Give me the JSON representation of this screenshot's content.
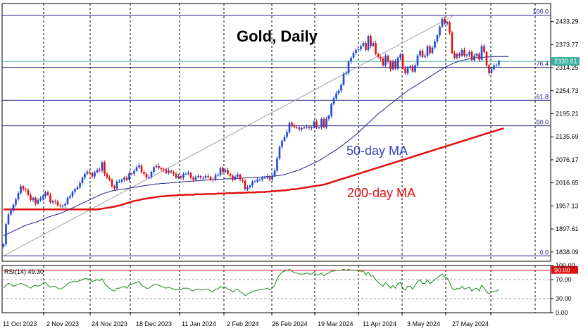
{
  "chart_data": [
    {
      "type": "candlestick",
      "title": "Gold, Daily",
      "x_labels": [
        "11 Oct 2023",
        "2 Nov 2023",
        "24 Nov 2023",
        "18 Dec 2023",
        "11 Jan 2024",
        "2 Feb 2024",
        "26 Feb 2024",
        "19 Mar 2024",
        "11 Apr 2024",
        "3 May 2024",
        "27 May 2024"
      ],
      "y_ticks": [
        "2433.29",
        "2373.77",
        "2314.25",
        "2254.73",
        "2195.21",
        "2135.69",
        "2076.17",
        "2016.65",
        "1957.13",
        "1897.61",
        "1838.09"
      ],
      "ylim": [
        1814,
        2480
      ],
      "current_price": {
        "label": "2330.61",
        "value": 2330.61
      },
      "fibonacci": [
        {
          "label": "100.0",
          "value": 2450
        },
        {
          "label": "76.4",
          "value": 2315
        },
        {
          "label": "61.8",
          "value": 2230
        },
        {
          "label": "50.0",
          "value": 2164
        },
        {
          "label": "0.0",
          "value": 1828
        }
      ],
      "annotations": {
        "ma50": "50-day MA",
        "ma200": "200-day MA"
      },
      "colors": {
        "up": "#1a48d8",
        "down": "#e01010",
        "ma50": "#20208a",
        "ma200": "#e01010",
        "fib": "#20208a",
        "price": "#3ab0a0",
        "label_ma50": "#3a42c0",
        "label_ma200": "#e01010"
      },
      "close": [
        1858,
        1910,
        1935,
        1945,
        1960,
        1974,
        1990,
        2008,
        2000,
        1998,
        1985,
        1972,
        1978,
        1963,
        1972,
        1976,
        1982,
        1992,
        1985,
        1966,
        1970,
        1968,
        1958,
        1956,
        1958,
        1962,
        1978,
        1982,
        1994,
        2000,
        2005,
        2016,
        2030,
        2040,
        2045,
        2042,
        2033,
        2044,
        2050,
        2048,
        2070,
        2040,
        2030,
        2025,
        2008,
        2002,
        2020,
        2020,
        2025,
        2030,
        2024,
        2041,
        2040,
        2048,
        2057,
        2062,
        2045,
        2040,
        2030,
        2032,
        2045,
        2057,
        2060,
        2055,
        2052,
        2050,
        2042,
        2048,
        2045,
        2040,
        2030,
        2034,
        2030,
        2040,
        2040,
        2042,
        2030,
        2025,
        2032,
        2034,
        2030,
        2030,
        2034,
        2032,
        2026,
        2024,
        2037,
        2037,
        2055,
        2045,
        2050,
        2040,
        2035,
        2025,
        2033,
        2038,
        2025,
        2022,
        2000,
        2005,
        2010,
        2020,
        2020,
        2025,
        2025,
        2030,
        2030,
        2034,
        2025,
        2035,
        2048,
        2080,
        2110,
        2125,
        2135,
        2148,
        2172,
        2165,
        2160,
        2160,
        2155,
        2158,
        2160,
        2162,
        2158,
        2160,
        2175,
        2160,
        2160,
        2182,
        2160,
        2182,
        2190,
        2220,
        2235,
        2248,
        2255,
        2270,
        2298,
        2300,
        2330,
        2340,
        2352,
        2360,
        2362,
        2370,
        2378,
        2360,
        2396,
        2370,
        2378,
        2350,
        2342,
        2338,
        2320,
        2345,
        2330,
        2310,
        2330,
        2312,
        2340,
        2348,
        2312,
        2300,
        2315,
        2318,
        2304,
        2320,
        2346,
        2358,
        2342,
        2345,
        2370,
        2352,
        2366,
        2382,
        2398,
        2420,
        2440,
        2428,
        2432,
        2405,
        2352,
        2340,
        2350,
        2345,
        2360,
        2345,
        2348,
        2355,
        2334,
        2345,
        2350,
        2335,
        2370,
        2355,
        2320,
        2300,
        2310,
        2320,
        2322,
        2331
      ],
      "ma50": [
        1880,
        1883,
        1886,
        1889,
        1892,
        1895,
        1898,
        1901,
        1904,
        1907,
        1909,
        1911,
        1913,
        1915,
        1917,
        1920,
        1922,
        1925,
        1928,
        1930,
        1932,
        1934,
        1936,
        1938,
        1940,
        1943,
        1946,
        1949,
        1952,
        1955,
        1958,
        1961,
        1964,
        1967,
        1970,
        1973,
        1976,
        1979,
        1982,
        1985,
        1988,
        1990,
        1992,
        1994,
        1996,
        1997,
        1998,
        1999,
        2000,
        2001,
        2002,
        2003,
        2004,
        2005,
        2006,
        2007,
        2008,
        2009,
        2010,
        2011,
        2012,
        2013,
        2014,
        2014,
        2015,
        2015,
        2016,
        2016,
        2017,
        2017,
        2018,
        2018,
        2019,
        2019,
        2020,
        2020,
        2021,
        2021,
        2022,
        2022,
        2023,
        2023,
        2024,
        2024,
        2025,
        2025,
        2025,
        2026,
        2026,
        2026,
        2027,
        2027,
        2027,
        2028,
        2028,
        2028,
        2029,
        2029,
        2029,
        2030,
        2030,
        2030,
        2031,
        2031,
        2031,
        2032,
        2032,
        2033,
        2033,
        2034,
        2034,
        2035,
        2036,
        2037,
        2038,
        2040,
        2042,
        2044,
        2046,
        2048,
        2050,
        2053,
        2056,
        2059,
        2062,
        2065,
        2068,
        2071,
        2074,
        2078,
        2082,
        2086,
        2090,
        2094,
        2098,
        2102,
        2106,
        2111,
        2116,
        2121,
        2126,
        2131,
        2136,
        2141,
        2147,
        2153,
        2159,
        2165,
        2171,
        2177,
        2183,
        2189,
        2195,
        2200,
        2205,
        2210,
        2215,
        2220,
        2225,
        2230,
        2235,
        2240,
        2245,
        2250,
        2255,
        2259,
        2263,
        2267,
        2271,
        2275,
        2279,
        2283,
        2287,
        2291,
        2295,
        2299,
        2303,
        2307,
        2311,
        2315,
        2318,
        2321,
        2324,
        2327,
        2329,
        2331,
        2333,
        2334,
        2336,
        2337,
        2338,
        2339,
        2340,
        2340,
        2341,
        2341,
        2342,
        2342,
        2342,
        2343,
        2343,
        2343,
        2343,
        2343,
        2343,
        2343
      ],
      "ma200": [
        1948,
        1948,
        1948,
        1948,
        1948,
        1948,
        1948,
        1948,
        1948,
        1948,
        1948,
        1948,
        1948,
        1948,
        1948,
        1948,
        1948,
        1948,
        1948,
        1948,
        1948,
        1948,
        1948,
        1948,
        1948,
        1948,
        1948,
        1948,
        1948,
        1948,
        1948,
        1948,
        1948,
        1948,
        1948,
        1948,
        1948,
        1948,
        1948,
        1949,
        1950,
        1951,
        1952,
        1953,
        1954,
        1955,
        1957,
        1958,
        1960,
        1962,
        1964,
        1966,
        1968,
        1970,
        1971,
        1972,
        1974,
        1975,
        1976,
        1977,
        1978,
        1979,
        1980,
        1981,
        1982,
        1982,
        1983,
        1983,
        1984,
        1984,
        1984,
        1985,
        1985,
        1985,
        1986,
        1986,
        1986,
        1986,
        1987,
        1987,
        1987,
        1987,
        1988,
        1988,
        1988,
        1988,
        1988,
        1989,
        1989,
        1989,
        1989,
        1990,
        1990,
        1990,
        1990,
        1991,
        1991,
        1991,
        1991,
        1992,
        1992,
        1992,
        1992,
        1993,
        1993,
        1993,
        1993,
        1994,
        1994,
        1995,
        1995,
        1996,
        1996,
        1997,
        1997,
        1998,
        1999,
        2000,
        2000,
        2001,
        2002,
        2003,
        2004,
        2005,
        2006,
        2007,
        2008,
        2009,
        2010,
        2011,
        2012,
        2014,
        2016,
        2018,
        2020,
        2022,
        2024,
        2026,
        2028,
        2030,
        2032,
        2034,
        2036,
        2038,
        2040,
        2042,
        2044,
        2046,
        2048,
        2050,
        2052,
        2054,
        2056,
        2058,
        2060,
        2062,
        2064,
        2066,
        2068,
        2070,
        2072,
        2074,
        2076,
        2078,
        2080,
        2082,
        2084,
        2086,
        2088,
        2090,
        2092,
        2094,
        2096,
        2098,
        2100,
        2102,
        2104,
        2106,
        2108,
        2110,
        2112,
        2114,
        2116,
        2118,
        2120,
        2122,
        2124,
        2126,
        2128,
        2130,
        2132,
        2134,
        2136,
        2138,
        2140,
        2142,
        2144,
        2146,
        2148,
        2150,
        2152,
        2154,
        2156,
        2157
      ],
      "trendline": {
        "from": [
          0,
          1828
        ],
        "to": [
          183,
          2450
        ]
      }
    },
    {
      "type": "line",
      "title": "RSI(14) 49.30",
      "y_ticks": [
        "100.00",
        "70.00",
        "30.00",
        "0.00"
      ],
      "ylim": [
        0,
        100
      ],
      "levels": [
        {
          "value": 90,
          "label": "90.00",
          "color": "#e01010"
        },
        {
          "value": 70,
          "label": "70.00",
          "color": "#999999"
        },
        {
          "value": 30,
          "label": "30.00",
          "color": "#999999"
        }
      ],
      "series_color": "#1a8a1a",
      "values": [
        52,
        58,
        62,
        60,
        56,
        58,
        60,
        62,
        60,
        58,
        55,
        52,
        56,
        58,
        56,
        58,
        62,
        64,
        58,
        54,
        56,
        55,
        52,
        50,
        53,
        56,
        62,
        64,
        66,
        66,
        66,
        68,
        70,
        72,
        72,
        70,
        66,
        68,
        70,
        68,
        72,
        62,
        56,
        52,
        48,
        46,
        52,
        52,
        54,
        56,
        52,
        58,
        60,
        62,
        64,
        66,
        58,
        55,
        52,
        52,
        56,
        60,
        60,
        58,
        56,
        54,
        52,
        54,
        52,
        50,
        48,
        50,
        48,
        52,
        52,
        52,
        48,
        46,
        50,
        50,
        48,
        48,
        50,
        50,
        46,
        44,
        50,
        50,
        56,
        52,
        54,
        50,
        48,
        44,
        48,
        50,
        44,
        42,
        36,
        40,
        42,
        46,
        46,
        48,
        48,
        50,
        50,
        52,
        48,
        52,
        58,
        72,
        80,
        86,
        88,
        90,
        92,
        88,
        85,
        84,
        82,
        82,
        82,
        84,
        82,
        82,
        86,
        80,
        80,
        84,
        78,
        82,
        84,
        88,
        88,
        90,
        90,
        90,
        92,
        90,
        92,
        90,
        90,
        90,
        88,
        88,
        88,
        80,
        86,
        78,
        78,
        70,
        64,
        60,
        56,
        64,
        58,
        52,
        58,
        52,
        62,
        64,
        52,
        48,
        56,
        56,
        50,
        58,
        66,
        70,
        62,
        62,
        70,
        62,
        66,
        70,
        74,
        78,
        82,
        75,
        74,
        64,
        52,
        48,
        52,
        50,
        56,
        50,
        52,
        54,
        46,
        50,
        52,
        46,
        58,
        52,
        44,
        40,
        44,
        46,
        46,
        49
      ]
    }
  ]
}
